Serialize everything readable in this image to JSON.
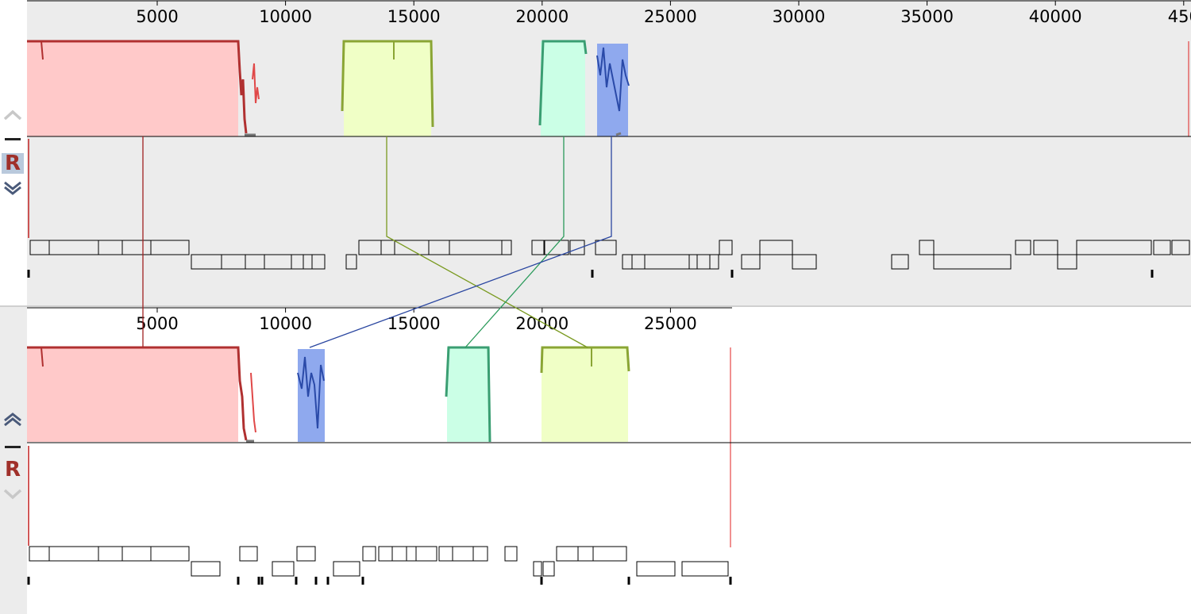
{
  "genomes": [
    {
      "id": "genome-1",
      "axis_ticks": [
        "5000",
        "10000",
        "15000",
        "20000",
        "25000",
        "30000",
        "35000",
        "40000",
        "450"
      ],
      "controls": {
        "up_icon": "chevron-up-icon",
        "minus_icon": "collapse-icon",
        "reference_label": "R",
        "down_icon": "chevron-double-down-icon"
      }
    },
    {
      "id": "genome-2",
      "axis_ticks": [
        "5000",
        "10000",
        "15000",
        "20000",
        "25000"
      ],
      "controls": {
        "up_icon": "chevron-double-up-icon",
        "minus_icon": "collapse-icon",
        "reference_label": "R",
        "down_icon": "chevron-down-icon"
      }
    }
  ],
  "colors": {
    "red_block": "#ffc9c9",
    "red_edge": "#b03030",
    "yellow_block": "#f0ffc6",
    "yellow_edge": "#8aa534",
    "green_block": "#cbffe6",
    "green_edge": "#3a9e72",
    "blue_block": "#6b8ee8",
    "blue_edge": "#2a4aa8",
    "panel_bg": "#ececec",
    "divider": "#000000"
  }
}
